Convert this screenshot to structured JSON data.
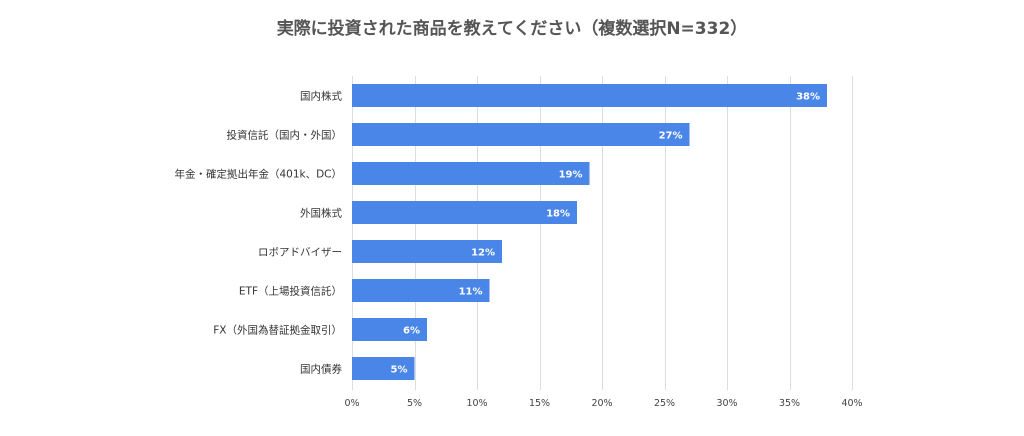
{
  "chart_data": {
    "type": "bar",
    "orientation": "horizontal",
    "title": "実際に投資された商品を教えてください（複数選択N=332）",
    "categories": [
      "国内株式",
      "投資信託（国内・外国）",
      "年金・確定拠出年金（401k、DC）",
      "外国株式",
      "ロボアドバイザー",
      "ETF（上場投資信託）",
      "FX（外国為替証拠金取引）",
      "国内債券"
    ],
    "values": [
      38,
      27,
      19,
      18,
      12,
      11,
      6,
      5
    ],
    "data_labels": [
      "38%",
      "27%",
      "19%",
      "18%",
      "12%",
      "11%",
      "6%",
      "5%"
    ],
    "xlim": [
      0,
      40
    ],
    "ticks": [
      0,
      5,
      10,
      15,
      20,
      25,
      30,
      35,
      40
    ],
    "tick_labels": [
      "0%",
      "5%",
      "10%",
      "15%",
      "20%",
      "25%",
      "30%",
      "35%",
      "40%"
    ],
    "xlabel": "",
    "ylabel": "",
    "grid": true,
    "legend": "none",
    "bar_color": "#4a86e8"
  }
}
